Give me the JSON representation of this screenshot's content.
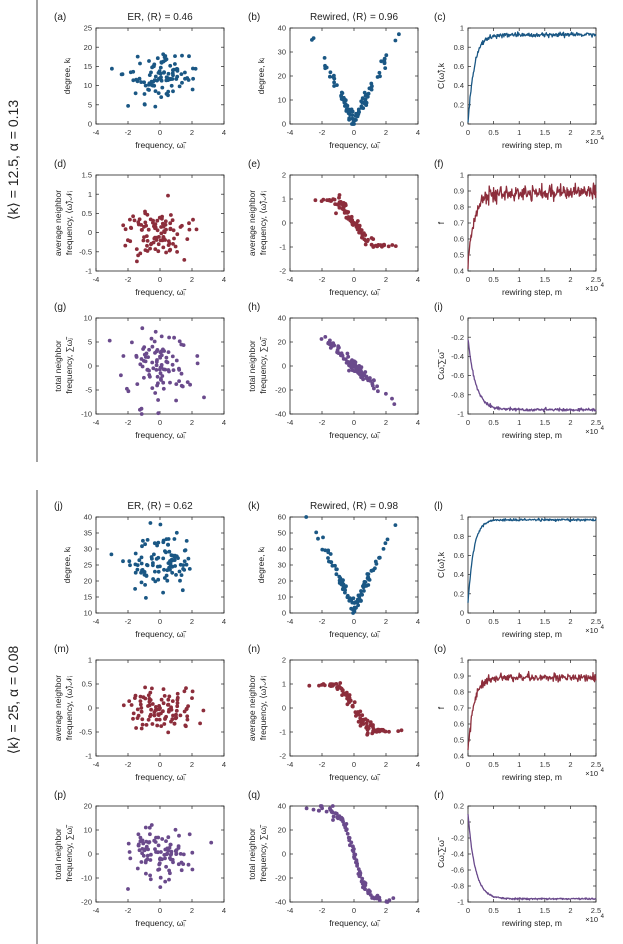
{
  "groups": [
    {
      "label": "⟨k⟩ = 12.5, α = 0.13"
    },
    {
      "label": "⟨k⟩ = 25, α = 0.08"
    }
  ],
  "colors": {
    "row1": "#1a5784",
    "row2": "#8c2d3b",
    "row3": "#6a4a8c",
    "axis": "#222222"
  },
  "exponent_label": "×10",
  "exponent_power": "4",
  "chart_data": [
    {
      "id": "a",
      "type": "scatter",
      "panel_label": "(a)",
      "title": "ER, ⟨R⟩ = 0.46",
      "xlabel": "frequency, ω̃ᵢ",
      "ylabel": "degree, kᵢ",
      "xlim": [
        -4,
        4
      ],
      "ylim": [
        0,
        25
      ],
      "xticks": [
        -4,
        -2,
        0,
        2,
        4
      ],
      "yticks": [
        0,
        5,
        10,
        15,
        20,
        25
      ],
      "color": "row1",
      "seed": 11,
      "n": 100,
      "gen": {
        "mode": "blob",
        "cy": 12,
        "sy": 3.2
      }
    },
    {
      "id": "b",
      "type": "scatter",
      "panel_label": "(b)",
      "title": "Rewired, ⟨R⟩ = 0.96",
      "xlabel": "frequency, ω̃ᵢ",
      "ylabel": "degree, kᵢ",
      "xlim": [
        -4,
        4
      ],
      "ylim": [
        0,
        40
      ],
      "xticks": [
        -4,
        -2,
        0,
        2,
        4
      ],
      "yticks": [
        0,
        10,
        20,
        30,
        40
      ],
      "color": "row1",
      "seed": 12,
      "n": 100,
      "gen": {
        "mode": "vshape",
        "base": 1.5,
        "slope": 13,
        "noise": 1.5
      }
    },
    {
      "id": "c",
      "type": "line",
      "panel_label": "(c)",
      "title": "",
      "xlabel": "rewiring step, m",
      "ylabel": "C⟨ω̃⟩,k",
      "xlim": [
        0,
        2.5
      ],
      "ylim": [
        0,
        1
      ],
      "xticks": [
        0,
        0.5,
        1,
        1.5,
        2,
        2.5
      ],
      "yticks": [
        0,
        0.2,
        0.4,
        0.6,
        0.8,
        1
      ],
      "color": "row1",
      "exponent": true,
      "seed": 13,
      "gen": {
        "start": 0,
        "plateau": 0.93,
        "rate": 0.12,
        "noise": 0.012
      }
    },
    {
      "id": "d",
      "type": "scatter",
      "panel_label": "(d)",
      "title": "",
      "xlabel": "frequency, ω̃ᵢ",
      "ylabel": "average neighbor frequency, ⟨ω̃⟩𝒩ᵢ",
      "xlim": [
        -4,
        4
      ],
      "ylim": [
        -1,
        1.5
      ],
      "xticks": [
        -4,
        -2,
        0,
        2,
        4
      ],
      "yticks": [
        -1,
        -0.5,
        0,
        0.5,
        1,
        1.5
      ],
      "color": "row2",
      "seed": 21,
      "n": 100,
      "gen": {
        "mode": "blob",
        "cy": 0,
        "sy": 0.32
      }
    },
    {
      "id": "e",
      "type": "scatter",
      "panel_label": "(e)",
      "title": "",
      "xlabel": "frequency, ω̃ᵢ",
      "ylabel": "average neighbor frequency, ⟨ω̃⟩𝒩ᵢ",
      "xlim": [
        -4,
        4
      ],
      "ylim": [
        -2,
        2
      ],
      "xticks": [
        -4,
        -2,
        0,
        2,
        4
      ],
      "yticks": [
        -2,
        -1,
        0,
        1,
        2
      ],
      "color": "row2",
      "seed": 22,
      "n": 100,
      "gen": {
        "mode": "zshape",
        "amp": 1.05,
        "noise": 0.12
      }
    },
    {
      "id": "f",
      "type": "line",
      "panel_label": "(f)",
      "title": "",
      "xlabel": "rewiring step, m",
      "ylabel": "f",
      "xlim": [
        0,
        2.5
      ],
      "ylim": [
        0.4,
        1
      ],
      "xticks": [
        0,
        0.5,
        1,
        1.5,
        2,
        2.5
      ],
      "yticks": [
        0.4,
        0.5,
        0.6,
        0.7,
        0.8,
        0.9,
        1
      ],
      "color": "row2",
      "exponent": true,
      "seed": 23,
      "gen": {
        "start": 0.45,
        "plateau": 0.89,
        "rate": 0.13,
        "noise": 0.022
      }
    },
    {
      "id": "g",
      "type": "scatter",
      "panel_label": "(g)",
      "title": "",
      "xlabel": "frequency, ω̃ᵢ",
      "ylabel": "total neighbor frequency, ∑ω̃ⱼ",
      "xlim": [
        -4,
        4
      ],
      "ylim": [
        -10,
        10
      ],
      "xticks": [
        -4,
        -2,
        0,
        2,
        4
      ],
      "yticks": [
        -10,
        -5,
        0,
        5,
        10
      ],
      "color": "row3",
      "seed": 31,
      "n": 100,
      "gen": {
        "mode": "blob",
        "cy": 0,
        "sy": 3.6
      }
    },
    {
      "id": "h",
      "type": "scatter",
      "panel_label": "(h)",
      "title": "",
      "xlabel": "frequency, ω̃ᵢ",
      "ylabel": "total neighbor frequency, ∑ω̃ⱼ",
      "xlim": [
        -4,
        4
      ],
      "ylim": [
        -40,
        40
      ],
      "xticks": [
        -4,
        -2,
        0,
        2,
        4
      ],
      "yticks": [
        -40,
        -20,
        0,
        20,
        40
      ],
      "color": "row3",
      "seed": 32,
      "n": 100,
      "gen": {
        "mode": "linear",
        "slope": -12.5,
        "noise": 2.5
      }
    },
    {
      "id": "i",
      "type": "line",
      "panel_label": "(i)",
      "title": "",
      "xlabel": "rewiring step, m",
      "ylabel": "Cω̃,∑ω̃",
      "xlim": [
        0,
        2.5
      ],
      "ylim": [
        -1,
        0
      ],
      "xticks": [
        0,
        0.5,
        1,
        1.5,
        2,
        2.5
      ],
      "yticks": [
        -1,
        -0.8,
        -0.6,
        -0.4,
        -0.2,
        0
      ],
      "color": "row3",
      "exponent": true,
      "seed": 33,
      "gen": {
        "start": -0.22,
        "plateau": -0.955,
        "rate": 0.15,
        "noise": 0.008
      }
    },
    {
      "id": "j",
      "type": "scatter",
      "panel_label": "(j)",
      "title": "ER, ⟨R⟩ = 0.62",
      "xlabel": "frequency, ω̃ᵢ",
      "ylabel": "degree, kᵢ",
      "xlim": [
        -4,
        4
      ],
      "ylim": [
        10,
        40
      ],
      "xticks": [
        -4,
        -2,
        0,
        2,
        4
      ],
      "yticks": [
        10,
        15,
        20,
        25,
        30,
        35,
        40
      ],
      "color": "row1",
      "seed": 41,
      "n": 100,
      "gen": {
        "mode": "blob",
        "cy": 25,
        "sy": 4.8
      }
    },
    {
      "id": "k",
      "type": "scatter",
      "panel_label": "(k)",
      "title": "Rewired, ⟨R⟩ = 0.98",
      "xlabel": "frequency, ω̃ᵢ",
      "ylabel": "degree, kᵢ",
      "xlim": [
        -4,
        4
      ],
      "ylim": [
        0,
        60
      ],
      "xticks": [
        -4,
        -2,
        0,
        2,
        4
      ],
      "yticks": [
        0,
        10,
        20,
        30,
        40,
        50,
        60
      ],
      "color": "row1",
      "seed": 42,
      "n": 100,
      "gen": {
        "mode": "vshape",
        "base": 3,
        "slope": 20,
        "noise": 2
      }
    },
    {
      "id": "l",
      "type": "line",
      "panel_label": "(l)",
      "title": "",
      "xlabel": "rewiring step, m",
      "ylabel": "C⟨ω̃⟩,k",
      "xlim": [
        0,
        2.5
      ],
      "ylim": [
        0,
        1
      ],
      "xticks": [
        0,
        0.5,
        1,
        1.5,
        2,
        2.5
      ],
      "yticks": [
        0,
        0.2,
        0.4,
        0.6,
        0.8,
        1
      ],
      "color": "row1",
      "exponent": true,
      "seed": 43,
      "gen": {
        "start": 0.1,
        "plateau": 0.97,
        "rate": 0.11,
        "noise": 0.006
      }
    },
    {
      "id": "m",
      "type": "scatter",
      "panel_label": "(m)",
      "title": "",
      "xlabel": "frequency, ω̃ᵢ",
      "ylabel": "average neighbor frequency, ⟨ω̃⟩𝒩ᵢ",
      "xlim": [
        -4,
        4
      ],
      "ylim": [
        -1,
        1
      ],
      "xticks": [
        -4,
        -2,
        0,
        2,
        4
      ],
      "yticks": [
        -1,
        -0.5,
        0,
        0.5,
        1
      ],
      "color": "row2",
      "seed": 51,
      "n": 100,
      "gen": {
        "mode": "blob",
        "cy": 0,
        "sy": 0.2
      }
    },
    {
      "id": "n",
      "type": "scatter",
      "panel_label": "(n)",
      "title": "",
      "xlabel": "frequency, ω̃ᵢ",
      "ylabel": "average neighbor frequency, ⟨ω̃⟩𝒩ᵢ",
      "xlim": [
        -4,
        4
      ],
      "ylim": [
        -2,
        2
      ],
      "xticks": [
        -4,
        -2,
        0,
        2,
        4
      ],
      "yticks": [
        -2,
        -1,
        0,
        1,
        2
      ],
      "color": "row2",
      "seed": 52,
      "n": 100,
      "gen": {
        "mode": "zshape",
        "amp": 1.1,
        "noise": 0.12
      }
    },
    {
      "id": "o",
      "type": "line",
      "panel_label": "(o)",
      "title": "",
      "xlabel": "rewiring step, m",
      "ylabel": "f",
      "xlim": [
        0,
        2.5
      ],
      "ylim": [
        0.4,
        1
      ],
      "xticks": [
        0,
        0.5,
        1,
        1.5,
        2,
        2.5
      ],
      "yticks": [
        0.4,
        0.5,
        0.6,
        0.7,
        0.8,
        0.9,
        1
      ],
      "color": "row2",
      "exponent": true,
      "seed": 53,
      "gen": {
        "start": 0.45,
        "plateau": 0.89,
        "rate": 0.12,
        "noise": 0.012
      }
    },
    {
      "id": "p",
      "type": "scatter",
      "panel_label": "(p)",
      "title": "",
      "xlabel": "frequency, ω̃ᵢ",
      "ylabel": "total neighbor frequency, ∑ω̃ⱼ",
      "xlim": [
        -4,
        4
      ],
      "ylim": [
        -20,
        20
      ],
      "xticks": [
        -4,
        -2,
        0,
        2,
        4
      ],
      "yticks": [
        -20,
        -10,
        0,
        10,
        20
      ],
      "color": "row3",
      "seed": 61,
      "n": 100,
      "gen": {
        "mode": "blob",
        "cy": 0,
        "sy": 5.5
      }
    },
    {
      "id": "q",
      "type": "scatter",
      "panel_label": "(q)",
      "title": "",
      "xlabel": "frequency, ω̃ᵢ",
      "ylabel": "total neighbor frequency, ∑ω̃ⱼ",
      "xlim": [
        -4,
        4
      ],
      "ylim": [
        -40,
        40
      ],
      "xticks": [
        -4,
        -2,
        0,
        2,
        4
      ],
      "yticks": [
        -40,
        -20,
        0,
        20,
        40
      ],
      "color": "row3",
      "seed": 62,
      "n": 100,
      "gen": {
        "mode": "sigmoid",
        "amp": 38,
        "scale": 0.75,
        "noise": 2
      }
    },
    {
      "id": "r",
      "type": "line",
      "panel_label": "(r)",
      "title": "",
      "xlabel": "rewiring step, m",
      "ylabel": "Cω̃,∑ω̃",
      "xlim": [
        0,
        2.5
      ],
      "ylim": [
        -1,
        0.2
      ],
      "xticks": [
        0,
        0.5,
        1,
        1.5,
        2,
        2.5
      ],
      "yticks": [
        -1,
        -0.8,
        -0.6,
        -0.4,
        -0.2,
        0,
        0.2
      ],
      "color": "row3",
      "exponent": true,
      "seed": 63,
      "gen": {
        "start": 0.1,
        "plateau": -0.96,
        "rate": 0.14,
        "noise": 0.006
      }
    }
  ]
}
